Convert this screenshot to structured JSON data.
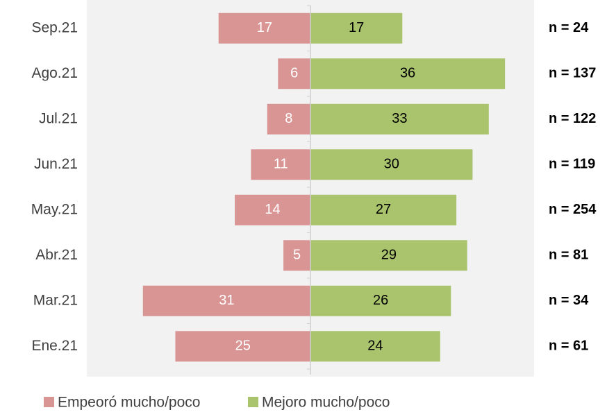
{
  "chart_data": {
    "type": "diverging_bar",
    "categories": [
      "Sep.21",
      "Ago.21",
      "Jul.21",
      "Jun.21",
      "May.21",
      "Abr.21",
      "Mar.21",
      "Ene.21"
    ],
    "series": [
      {
        "name": "Empeoró mucho/poco",
        "color": "#d99594",
        "direction": "left",
        "values": [
          17,
          6,
          8,
          11,
          14,
          5,
          31,
          25
        ]
      },
      {
        "name": "Mejoro mucho/poco",
        "color": "#a9c46c",
        "direction": "right",
        "values": [
          17,
          36,
          33,
          30,
          27,
          29,
          26,
          24
        ]
      }
    ],
    "n_labels": [
      "n = 24",
      "n = 137",
      "n = 122",
      "n = 119",
      "n = 254",
      "n = 81",
      "n = 34",
      "n = 61"
    ]
  }
}
